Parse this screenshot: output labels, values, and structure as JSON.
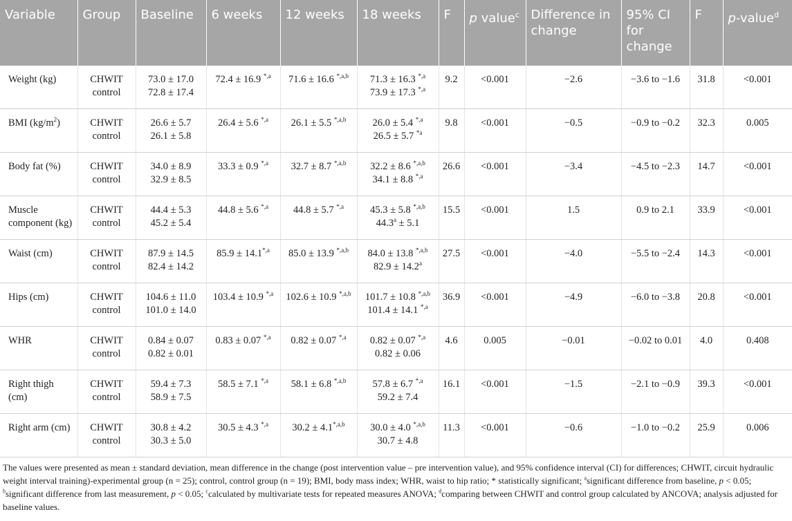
{
  "table": {
    "header": [
      "Variable",
      "Group",
      "Baseline",
      "6 weeks",
      "12 weeks",
      "18 weeks",
      "F",
      [
        {
          "i": "p"
        },
        " value",
        {
          "sup": "c"
        }
      ],
      "Difference in change",
      "95% CI for change",
      "F",
      [
        {
          "i": "p"
        },
        "-value",
        {
          "sup": "d"
        }
      ]
    ],
    "rows": [
      [
        [
          "Weight (kg)"
        ],
        [
          "CHWIT",
          "control"
        ],
        [
          "73.0 ± 17.0",
          "72.8 ± 17.4"
        ],
        [
          [
            "72.4 ± 16.9 ",
            {
              "sup": "*,a"
            }
          ]
        ],
        [
          [
            "71.6 ± 16.6 ",
            {
              "sup": "*,a,b"
            }
          ]
        ],
        [
          [
            "71.3 ± 16.3 ",
            {
              "sup": "*,a"
            }
          ],
          [
            "73.9 ± 17.3 ",
            {
              "sup": "*,a"
            }
          ]
        ],
        [
          "9.2"
        ],
        [
          "<0.001"
        ],
        [
          "−2.6"
        ],
        [
          "−3.6 to −1.6"
        ],
        [
          "31.8"
        ],
        [
          "<0.001"
        ]
      ],
      [
        [
          [
            "BMI (kg/m",
            {
              "sup": "2"
            },
            ")"
          ]
        ],
        [
          "CHWIT",
          "control"
        ],
        [
          "26.6 ± 5.7",
          "26.1 ± 5.8"
        ],
        [
          [
            "26.4 ± 5.6 ",
            {
              "sup": "*,a"
            }
          ]
        ],
        [
          [
            "26.1 ± 5.5 ",
            {
              "sup": "*,a,b"
            }
          ]
        ],
        [
          [
            "26.0 ± 5.4 ",
            {
              "sup": "*,a"
            }
          ],
          [
            "26.5 ± 5.7 ",
            {
              "sup": "*a"
            }
          ]
        ],
        [
          "9.8"
        ],
        [
          "<0.001"
        ],
        [
          "−0.5"
        ],
        [
          "−0.9 to −0.2"
        ],
        [
          "32.3"
        ],
        [
          "0.005"
        ]
      ],
      [
        [
          "Body fat (%)"
        ],
        [
          "CHWIT",
          "control"
        ],
        [
          "34.0 ± 8.9",
          "32.9 ± 8.5"
        ],
        [
          [
            "33.3 ± 0.9 ",
            {
              "sup": "*,a"
            }
          ]
        ],
        [
          [
            "32.7 ± 8.7 ",
            {
              "sup": "*,a,b"
            }
          ]
        ],
        [
          [
            "32.2 ± 8.6 ",
            {
              "sup": "*,a,b"
            }
          ],
          [
            "34.1 ± 8.8 ",
            {
              "sup": "*,a"
            }
          ]
        ],
        [
          "26.6"
        ],
        [
          "<0.001"
        ],
        [
          "−3.4"
        ],
        [
          "−4.5 to −2.3"
        ],
        [
          "14.7"
        ],
        [
          "<0.001"
        ]
      ],
      [
        [
          "Muscle component (kg)"
        ],
        [
          "CHWIT",
          "control"
        ],
        [
          "44.4 ± 5.3",
          "45.2 ± 5.4"
        ],
        [
          [
            "44.8 ± 5.6 ",
            {
              "sup": "*,a"
            }
          ]
        ],
        [
          [
            "44.8 ± 5.7 ",
            {
              "sup": "*,a"
            }
          ]
        ],
        [
          [
            "45.3 ± 5.8 ",
            {
              "sup": "*,a,b"
            }
          ],
          [
            "44.3",
            {
              "sup": "a"
            },
            " ± 5.1"
          ]
        ],
        [
          "15.5"
        ],
        [
          "<0.001"
        ],
        [
          "1.5"
        ],
        [
          "0.9 to 2.1"
        ],
        [
          "33.9"
        ],
        [
          "<0.001"
        ]
      ],
      [
        [
          "Waist (cm)"
        ],
        [
          "CHWIT",
          "control"
        ],
        [
          "87.9 ± 14.5",
          "82.4 ± 14.2"
        ],
        [
          [
            "85.9 ± 14.1",
            {
              "sup": "*,a"
            }
          ]
        ],
        [
          [
            "85.0 ± 13.9 ",
            {
              "sup": "*,a,b"
            }
          ]
        ],
        [
          [
            "84.0 ± 13.8 ",
            {
              "sup": "*,a,b"
            }
          ],
          [
            "82.9 ± 14.2",
            {
              "sup": "a"
            }
          ]
        ],
        [
          "27.5"
        ],
        [
          "<0.001"
        ],
        [
          "−4.0"
        ],
        [
          "−5.5 to −2.4"
        ],
        [
          "14.3"
        ],
        [
          "<0.001"
        ]
      ],
      [
        [
          "Hips (cm)"
        ],
        [
          "CHWIT",
          "control"
        ],
        [
          "104.6 ± 11.0",
          "101.0 ± 14.0"
        ],
        [
          [
            "103.4 ± 10.9 ",
            {
              "sup": "*,a"
            }
          ]
        ],
        [
          [
            "102.6 ± 10.9 ",
            {
              "sup": "*,a,b"
            }
          ]
        ],
        [
          [
            "101.7 ± 10.8 ",
            {
              "sup": "*,a,b"
            }
          ],
          [
            "101.4 ± 14.1 ",
            {
              "sup": "*,a"
            }
          ]
        ],
        [
          "36.9"
        ],
        [
          "<0.001"
        ],
        [
          "−4.9"
        ],
        [
          "−6.0 to −3.8"
        ],
        [
          "20.8"
        ],
        [
          "<0.001"
        ]
      ],
      [
        [
          "WHR"
        ],
        [
          "CHWIT",
          "control"
        ],
        [
          "0.84 ± 0.07",
          "0.82 ± 0.01"
        ],
        [
          [
            "0.83 ± 0.07 ",
            {
              "sup": "*,a"
            }
          ]
        ],
        [
          [
            "0.82 ± 0.07 ",
            {
              "sup": "*,a"
            }
          ]
        ],
        [
          [
            "0.82 ± 0.07 ",
            {
              "sup": "*,a"
            }
          ],
          "0.82 ± 0.06"
        ],
        [
          "4.6"
        ],
        [
          "0.005"
        ],
        [
          "−0.01"
        ],
        [
          "−0.02 to 0.01"
        ],
        [
          "4.0"
        ],
        [
          "0.408"
        ]
      ],
      [
        [
          "Right thigh (cm)"
        ],
        [
          "CHWIT",
          "control"
        ],
        [
          "59.4 ± 7.3",
          "58.9 ± 7.5"
        ],
        [
          [
            "58.5 ± 7.1 ",
            {
              "sup": "*,a"
            }
          ]
        ],
        [
          [
            "58.1 ± 6.8 ",
            {
              "sup": "*,a,b"
            }
          ]
        ],
        [
          [
            "57.8 ± 6.7 ",
            {
              "sup": "*,a"
            }
          ],
          "59.2 ± 7.4"
        ],
        [
          "16.1"
        ],
        [
          "<0.001"
        ],
        [
          "−1.5"
        ],
        [
          "−2.1 to −0.9"
        ],
        [
          "39.3"
        ],
        [
          "<0.001"
        ]
      ],
      [
        [
          "Right arm (cm)"
        ],
        [
          "CHWIT",
          "control"
        ],
        [
          "30.8 ± 4.2",
          "30.3 ± 5.0"
        ],
        [
          [
            "30.5 ± 4.3 ",
            {
              "sup": "*,a"
            }
          ]
        ],
        [
          [
            "30.2 ± 4.1",
            {
              "sup": "*,a,b"
            }
          ]
        ],
        [
          [
            "30.0 ± 4.0 ",
            {
              "sup": "*,a,b"
            }
          ],
          "30.7 ± 4.8"
        ],
        [
          "11.3"
        ],
        [
          "<0.001"
        ],
        [
          "−0.6"
        ],
        [
          "−1.0 to −0.2"
        ],
        [
          "25.9"
        ],
        [
          "0.006"
        ]
      ]
    ],
    "footnote": [
      "The values were presented as mean ± standard deviation, mean difference in the change (post intervention value – pre intervention value), and 95% confidence interval (CI) for differences; CHWIT, circuit hydraulic weight interval training)-experimental group (n = 25); control, control group (n = 19); BMI, body mass index; WHR, waist to hip ratio; * statistically significant; ",
      {
        "sup": "a"
      },
      "significant difference from baseline, ",
      {
        "i": "p"
      },
      " < 0.05; ",
      {
        "sup": "b"
      },
      "significant difference from last measurement, ",
      {
        "i": "p"
      },
      " < 0.05; ",
      {
        "sup": "c"
      },
      "calculated by multivariate tests for repeated measures ANOVA; ",
      {
        "sup": "d"
      },
      "comparing between CHWIT and control group calculated by ANCOVA; analysis adjusted for baseline values."
    ]
  }
}
